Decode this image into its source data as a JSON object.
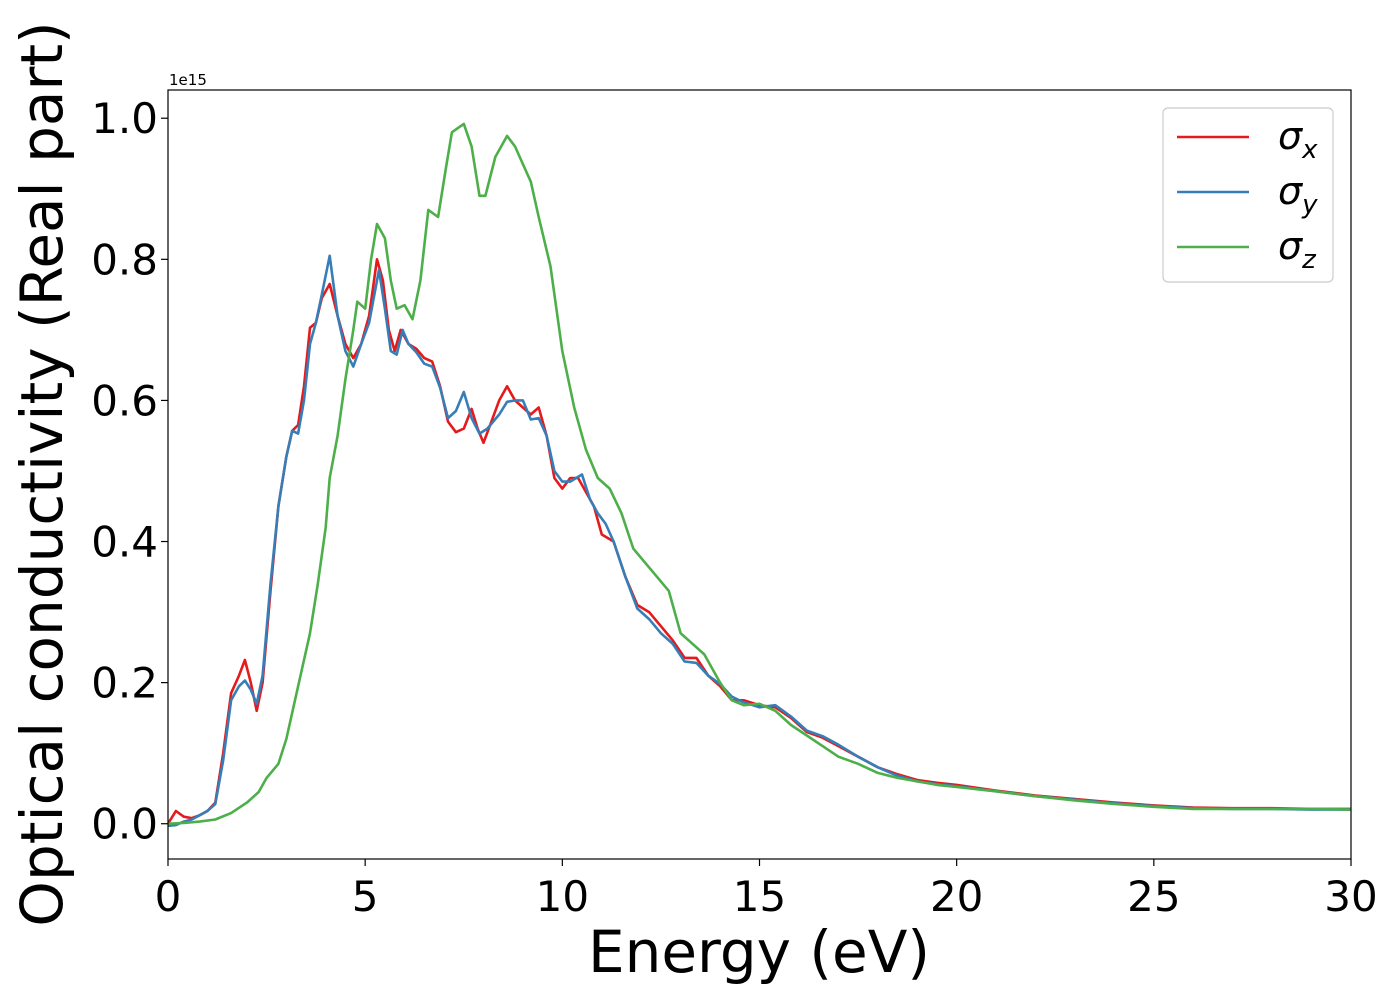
{
  "chart_data": {
    "type": "line",
    "title": "",
    "xlabel": "Energy (eV)",
    "ylabel": "Optical conductivity (Real part)",
    "y_offset_label": "1e15",
    "xlim": [
      0,
      30
    ],
    "ylim": [
      -0.05,
      1.04
    ],
    "x_ticks": [
      "0",
      "5",
      "10",
      "15",
      "20",
      "25",
      "30"
    ],
    "y_ticks": [
      "0.0",
      "0.2",
      "0.4",
      "0.6",
      "0.8",
      "1.0"
    ],
    "grid": false,
    "legend_position": "top-right",
    "series": [
      {
        "name": "σx",
        "symbol": "σ",
        "subscript": "x",
        "color": "#e41a1c",
        "points": [
          [
            0,
            0.0
          ],
          [
            0.2,
            0.018
          ],
          [
            0.4,
            0.01
          ],
          [
            0.6,
            0.008
          ],
          [
            0.8,
            0.012
          ],
          [
            1.0,
            0.018
          ],
          [
            1.2,
            0.03
          ],
          [
            1.4,
            0.1
          ],
          [
            1.6,
            0.185
          ],
          [
            1.8,
            0.21
          ],
          [
            1.95,
            0.232
          ],
          [
            2.1,
            0.2
          ],
          [
            2.25,
            0.16
          ],
          [
            2.4,
            0.2
          ],
          [
            2.6,
            0.33
          ],
          [
            2.8,
            0.45
          ],
          [
            3.0,
            0.52
          ],
          [
            3.15,
            0.557
          ],
          [
            3.3,
            0.565
          ],
          [
            3.45,
            0.62
          ],
          [
            3.6,
            0.703
          ],
          [
            3.75,
            0.71
          ],
          [
            3.9,
            0.745
          ],
          [
            4.1,
            0.765
          ],
          [
            4.3,
            0.72
          ],
          [
            4.5,
            0.68
          ],
          [
            4.7,
            0.66
          ],
          [
            4.9,
            0.68
          ],
          [
            5.1,
            0.72
          ],
          [
            5.3,
            0.8
          ],
          [
            5.45,
            0.77
          ],
          [
            5.6,
            0.7
          ],
          [
            5.75,
            0.67
          ],
          [
            5.9,
            0.7
          ],
          [
            6.1,
            0.68
          ],
          [
            6.3,
            0.673
          ],
          [
            6.5,
            0.66
          ],
          [
            6.7,
            0.655
          ],
          [
            6.9,
            0.62
          ],
          [
            7.1,
            0.57
          ],
          [
            7.3,
            0.555
          ],
          [
            7.5,
            0.56
          ],
          [
            7.7,
            0.588
          ],
          [
            7.85,
            0.56
          ],
          [
            8.0,
            0.54
          ],
          [
            8.2,
            0.57
          ],
          [
            8.4,
            0.6
          ],
          [
            8.6,
            0.62
          ],
          [
            8.8,
            0.6
          ],
          [
            9.0,
            0.59
          ],
          [
            9.2,
            0.58
          ],
          [
            9.4,
            0.59
          ],
          [
            9.6,
            0.55
          ],
          [
            9.8,
            0.49
          ],
          [
            10.0,
            0.475
          ],
          [
            10.2,
            0.49
          ],
          [
            10.4,
            0.49
          ],
          [
            10.6,
            0.47
          ],
          [
            10.8,
            0.45
          ],
          [
            11.0,
            0.41
          ],
          [
            11.3,
            0.4
          ],
          [
            11.6,
            0.35
          ],
          [
            11.9,
            0.31
          ],
          [
            12.2,
            0.3
          ],
          [
            12.5,
            0.28
          ],
          [
            12.8,
            0.26
          ],
          [
            13.1,
            0.235
          ],
          [
            13.4,
            0.235
          ],
          [
            13.7,
            0.21
          ],
          [
            14.0,
            0.195
          ],
          [
            14.3,
            0.175
          ],
          [
            14.6,
            0.175
          ],
          [
            15.0,
            0.168
          ],
          [
            15.4,
            0.165
          ],
          [
            15.8,
            0.15
          ],
          [
            16.2,
            0.13
          ],
          [
            16.6,
            0.122
          ],
          [
            17.0,
            0.11
          ],
          [
            17.5,
            0.095
          ],
          [
            18.0,
            0.08
          ],
          [
            18.5,
            0.07
          ],
          [
            19.0,
            0.062
          ],
          [
            19.5,
            0.058
          ],
          [
            20.0,
            0.055
          ],
          [
            21.0,
            0.047
          ],
          [
            22.0,
            0.04
          ],
          [
            23.0,
            0.035
          ],
          [
            24.0,
            0.03
          ],
          [
            25.0,
            0.026
          ],
          [
            26.0,
            0.023
          ],
          [
            27.0,
            0.022
          ],
          [
            28.0,
            0.022
          ],
          [
            29.0,
            0.021
          ],
          [
            30.0,
            0.021
          ]
        ]
      },
      {
        "name": "σy",
        "symbol": "σ",
        "subscript": "y",
        "color": "#377eb8",
        "points": [
          [
            0,
            -0.003
          ],
          [
            0.2,
            -0.002
          ],
          [
            0.4,
            0.003
          ],
          [
            0.6,
            0.006
          ],
          [
            0.8,
            0.012
          ],
          [
            1.0,
            0.018
          ],
          [
            1.2,
            0.028
          ],
          [
            1.4,
            0.09
          ],
          [
            1.6,
            0.175
          ],
          [
            1.8,
            0.195
          ],
          [
            1.95,
            0.203
          ],
          [
            2.1,
            0.19
          ],
          [
            2.25,
            0.17
          ],
          [
            2.4,
            0.21
          ],
          [
            2.6,
            0.34
          ],
          [
            2.8,
            0.45
          ],
          [
            3.0,
            0.52
          ],
          [
            3.15,
            0.557
          ],
          [
            3.3,
            0.553
          ],
          [
            3.45,
            0.6
          ],
          [
            3.6,
            0.68
          ],
          [
            3.75,
            0.71
          ],
          [
            3.9,
            0.75
          ],
          [
            4.1,
            0.805
          ],
          [
            4.3,
            0.72
          ],
          [
            4.5,
            0.67
          ],
          [
            4.7,
            0.648
          ],
          [
            4.9,
            0.68
          ],
          [
            5.1,
            0.71
          ],
          [
            5.35,
            0.785
          ],
          [
            5.5,
            0.73
          ],
          [
            5.65,
            0.67
          ],
          [
            5.8,
            0.665
          ],
          [
            5.95,
            0.7
          ],
          [
            6.1,
            0.68
          ],
          [
            6.3,
            0.668
          ],
          [
            6.5,
            0.652
          ],
          [
            6.7,
            0.648
          ],
          [
            6.9,
            0.618
          ],
          [
            7.1,
            0.575
          ],
          [
            7.3,
            0.585
          ],
          [
            7.5,
            0.612
          ],
          [
            7.7,
            0.575
          ],
          [
            7.9,
            0.553
          ],
          [
            8.1,
            0.56
          ],
          [
            8.4,
            0.58
          ],
          [
            8.6,
            0.598
          ],
          [
            8.8,
            0.6
          ],
          [
            9.0,
            0.6
          ],
          [
            9.2,
            0.573
          ],
          [
            9.4,
            0.575
          ],
          [
            9.6,
            0.55
          ],
          [
            9.8,
            0.5
          ],
          [
            10.0,
            0.485
          ],
          [
            10.2,
            0.485
          ],
          [
            10.5,
            0.495
          ],
          [
            10.7,
            0.46
          ],
          [
            10.9,
            0.44
          ],
          [
            11.1,
            0.425
          ],
          [
            11.3,
            0.4
          ],
          [
            11.6,
            0.35
          ],
          [
            11.9,
            0.305
          ],
          [
            12.2,
            0.29
          ],
          [
            12.5,
            0.27
          ],
          [
            12.8,
            0.255
          ],
          [
            13.1,
            0.23
          ],
          [
            13.4,
            0.228
          ],
          [
            13.7,
            0.21
          ],
          [
            14.0,
            0.198
          ],
          [
            14.3,
            0.18
          ],
          [
            14.6,
            0.172
          ],
          [
            15.0,
            0.165
          ],
          [
            15.4,
            0.168
          ],
          [
            15.8,
            0.152
          ],
          [
            16.2,
            0.132
          ],
          [
            16.6,
            0.124
          ],
          [
            17.0,
            0.112
          ],
          [
            17.5,
            0.095
          ],
          [
            18.0,
            0.08
          ],
          [
            18.5,
            0.068
          ],
          [
            19.0,
            0.06
          ],
          [
            19.5,
            0.056
          ],
          [
            20.0,
            0.053
          ],
          [
            21.0,
            0.046
          ],
          [
            22.0,
            0.039
          ],
          [
            23.0,
            0.034
          ],
          [
            24.0,
            0.029
          ],
          [
            25.0,
            0.025
          ],
          [
            26.0,
            0.022
          ],
          [
            27.0,
            0.021
          ],
          [
            28.0,
            0.021
          ],
          [
            29.0,
            0.02
          ],
          [
            30.0,
            0.02
          ]
        ]
      },
      {
        "name": "σz",
        "symbol": "σ",
        "subscript": "z",
        "color": "#4daf4a",
        "points": [
          [
            0,
            0.0
          ],
          [
            0.4,
            0.001
          ],
          [
            0.8,
            0.003
          ],
          [
            1.2,
            0.006
          ],
          [
            1.6,
            0.015
          ],
          [
            2.0,
            0.03
          ],
          [
            2.3,
            0.045
          ],
          [
            2.5,
            0.065
          ],
          [
            2.8,
            0.085
          ],
          [
            3.0,
            0.12
          ],
          [
            3.2,
            0.17
          ],
          [
            3.4,
            0.22
          ],
          [
            3.6,
            0.27
          ],
          [
            3.8,
            0.34
          ],
          [
            4.0,
            0.42
          ],
          [
            4.1,
            0.49
          ],
          [
            4.3,
            0.55
          ],
          [
            4.5,
            0.63
          ],
          [
            4.7,
            0.7
          ],
          [
            4.8,
            0.74
          ],
          [
            5.0,
            0.73
          ],
          [
            5.15,
            0.8
          ],
          [
            5.3,
            0.85
          ],
          [
            5.5,
            0.83
          ],
          [
            5.65,
            0.77
          ],
          [
            5.8,
            0.73
          ],
          [
            6.0,
            0.735
          ],
          [
            6.2,
            0.715
          ],
          [
            6.4,
            0.77
          ],
          [
            6.6,
            0.87
          ],
          [
            6.85,
            0.86
          ],
          [
            7.05,
            0.93
          ],
          [
            7.2,
            0.98
          ],
          [
            7.5,
            0.992
          ],
          [
            7.7,
            0.96
          ],
          [
            7.9,
            0.89
          ],
          [
            8.05,
            0.89
          ],
          [
            8.3,
            0.945
          ],
          [
            8.6,
            0.975
          ],
          [
            8.8,
            0.96
          ],
          [
            9.0,
            0.935
          ],
          [
            9.2,
            0.91
          ],
          [
            9.4,
            0.86
          ],
          [
            9.7,
            0.79
          ],
          [
            10.0,
            0.67
          ],
          [
            10.3,
            0.59
          ],
          [
            10.6,
            0.53
          ],
          [
            10.9,
            0.49
          ],
          [
            11.2,
            0.475
          ],
          [
            11.5,
            0.44
          ],
          [
            11.8,
            0.39
          ],
          [
            12.1,
            0.37
          ],
          [
            12.4,
            0.35
          ],
          [
            12.7,
            0.33
          ],
          [
            13.0,
            0.27
          ],
          [
            13.3,
            0.255
          ],
          [
            13.6,
            0.24
          ],
          [
            14.0,
            0.2
          ],
          [
            14.3,
            0.175
          ],
          [
            14.6,
            0.168
          ],
          [
            15.0,
            0.17
          ],
          [
            15.4,
            0.16
          ],
          [
            15.8,
            0.14
          ],
          [
            16.2,
            0.125
          ],
          [
            16.6,
            0.11
          ],
          [
            17.0,
            0.095
          ],
          [
            17.5,
            0.085
          ],
          [
            18.0,
            0.072
          ],
          [
            18.5,
            0.065
          ],
          [
            19.0,
            0.06
          ],
          [
            19.5,
            0.055
          ],
          [
            20.0,
            0.052
          ],
          [
            21.0,
            0.046
          ],
          [
            22.0,
            0.039
          ],
          [
            23.0,
            0.033
          ],
          [
            24.0,
            0.028
          ],
          [
            25.0,
            0.024
          ],
          [
            26.0,
            0.021
          ],
          [
            27.0,
            0.021
          ],
          [
            28.0,
            0.021
          ],
          [
            29.0,
            0.021
          ],
          [
            30.0,
            0.02
          ]
        ]
      }
    ]
  }
}
